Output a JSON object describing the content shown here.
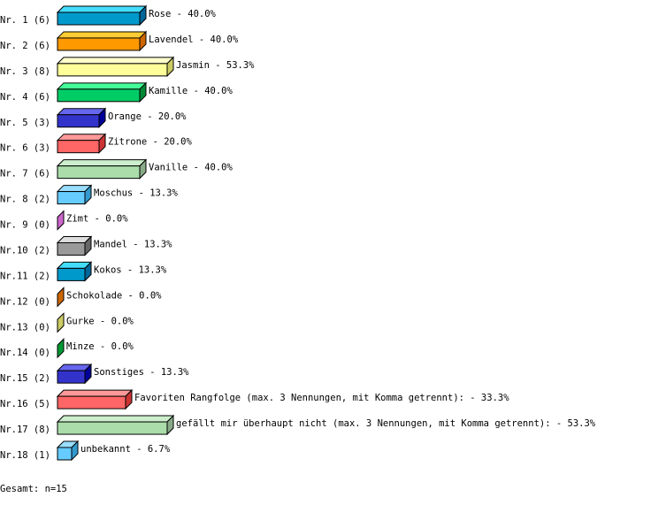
{
  "chart_data": {
    "type": "bar",
    "orientation": "horizontal",
    "style": "3d",
    "unit": "%",
    "categories": [
      "Nr. 1 (6)",
      "Nr. 2 (6)",
      "Nr. 3 (8)",
      "Nr. 4 (6)",
      "Nr. 5 (3)",
      "Nr. 6 (3)",
      "Nr. 7 (6)",
      "Nr. 8 (2)",
      "Nr. 9 (0)",
      "Nr.10 (2)",
      "Nr.11 (2)",
      "Nr.12 (0)",
      "Nr.13 (0)",
      "Nr.14 (0)",
      "Nr.15 (2)",
      "Nr.16 (5)",
      "Nr.17 (8)",
      "Nr.18 (1)"
    ],
    "labels": [
      "Rose",
      "Lavendel",
      "Jasmin",
      "Kamille",
      "Orange",
      "Zitrone",
      "Vanille",
      "Moschus",
      "Zimt",
      "Mandel",
      "Kokos",
      "Schokolade",
      "Gurke",
      "Minze",
      "Sonstiges",
      "Favoriten Rangfolge (max. 3 Nennungen, mit Komma getrennt):",
      "gefällt mir überhaupt nicht (max. 3 Nennungen, mit Komma getrennt):",
      "unbekannt"
    ],
    "value_labels": [
      "40.0%",
      "40.0%",
      "53.3%",
      "40.0%",
      "20.0%",
      "20.0%",
      "40.0%",
      "13.3%",
      "0.0%",
      "13.3%",
      "13.3%",
      "0.0%",
      "0.0%",
      "0.0%",
      "13.3%",
      "33.3%",
      "53.3%",
      "6.7%"
    ],
    "values": [
      40.0,
      40.0,
      53.3,
      40.0,
      20.0,
      20.0,
      40.0,
      13.3,
      0.0,
      13.3,
      13.3,
      0.0,
      0.0,
      0.0,
      13.3,
      33.3,
      53.3,
      6.7
    ],
    "counts": [
      6,
      6,
      8,
      6,
      3,
      3,
      6,
      2,
      0,
      2,
      2,
      0,
      0,
      0,
      2,
      5,
      8,
      1
    ],
    "colors": [
      [
        "#0099cc",
        "#44ddff",
        "#006699"
      ],
      [
        "#ff9900",
        "#ffcc33",
        "#cc6600"
      ],
      [
        "#ffff99",
        "#ffffcc",
        "#cccc66"
      ],
      [
        "#00cc66",
        "#44ff99",
        "#008833"
      ],
      [
        "#3333cc",
        "#6666ee",
        "#000099"
      ],
      [
        "#ff6666",
        "#ff9999",
        "#cc3333"
      ],
      [
        "#aaddaa",
        "#cceecc",
        "#88aa88"
      ],
      [
        "#66ccff",
        "#99ddff",
        "#3399cc"
      ],
      [
        "#cc66cc",
        "#ee99ee",
        "#cc66cc"
      ],
      [
        "#999999",
        "#dddddd",
        "#666666"
      ],
      [
        "#0099cc",
        "#44ddff",
        "#006699"
      ],
      [
        "#cc6600",
        "#ee8833",
        "#cc6600"
      ],
      [
        "#cccc66",
        "#eeee99",
        "#cccc66"
      ],
      [
        "#009933",
        "#33cc66",
        "#009933"
      ],
      [
        "#3333cc",
        "#6666ee",
        "#000099"
      ],
      [
        "#ff6666",
        "#ff9999",
        "#cc3333"
      ],
      [
        "#aaddaa",
        "#cceecc",
        "#88aa88"
      ],
      [
        "#66ccff",
        "#99ddff",
        "#3399cc"
      ]
    ],
    "xlim": [
      0,
      100
    ],
    "grid": false,
    "legend": "none"
  },
  "footer": {
    "total": "Gesamt: n=15"
  }
}
